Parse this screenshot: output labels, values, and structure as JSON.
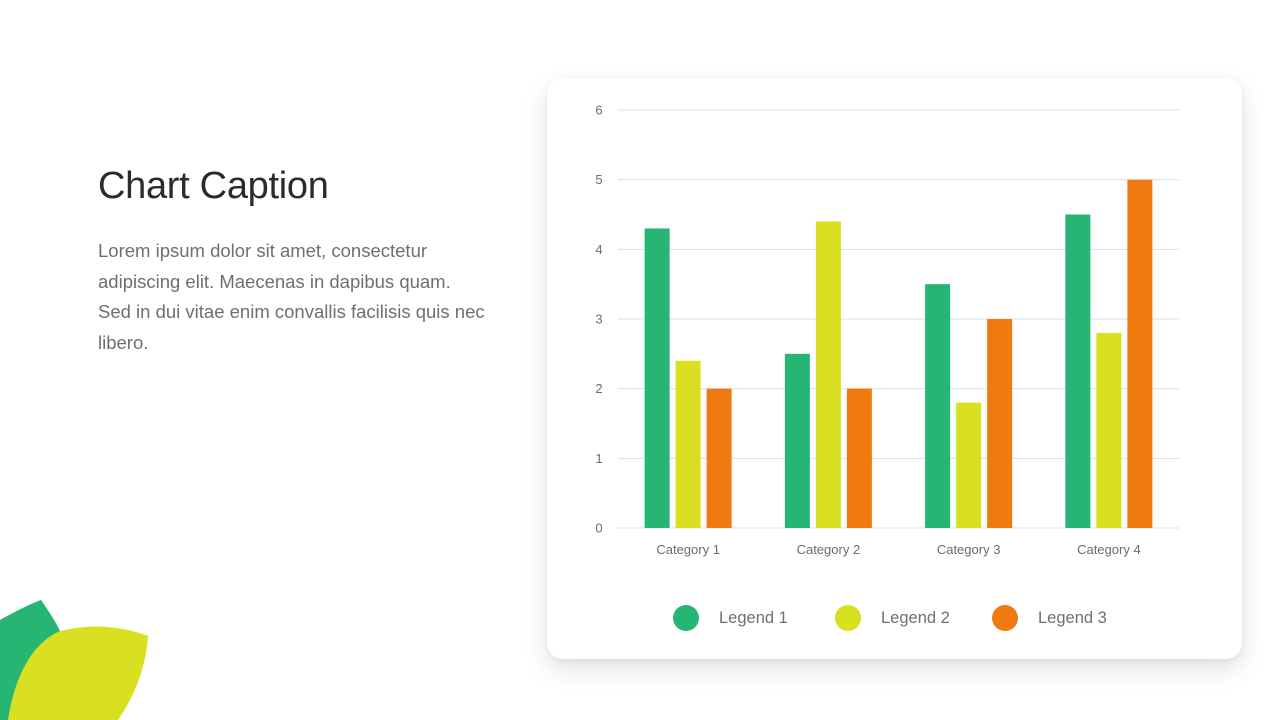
{
  "caption": {
    "title": "Chart Caption",
    "body": "Lorem ipsum dolor sit amet, consectetur adipiscing elit. Maecenas in dapibus quam. Sed in dui vitae enim convallis facilisis quis nec libero."
  },
  "colors": {
    "green": "#27b573",
    "yellow": "#d9e021",
    "orange": "#f07a10",
    "grid": "#dcdfe6",
    "tick_text": "#6b6b6b"
  },
  "chart_data": {
    "type": "bar",
    "categories": [
      "Category 1",
      "Category 2",
      "Category 3",
      "Category 4"
    ],
    "series": [
      {
        "name": "Legend 1",
        "color": "#27b573",
        "values": [
          4.3,
          2.5,
          3.5,
          4.5
        ]
      },
      {
        "name": "Legend 2",
        "color": "#d9e021",
        "values": [
          2.4,
          4.4,
          1.8,
          2.8
        ]
      },
      {
        "name": "Legend 3",
        "color": "#f07a10",
        "values": [
          2,
          2,
          3,
          5
        ]
      }
    ],
    "ylim": [
      0,
      6
    ],
    "yticks": [
      0,
      1,
      2,
      3,
      4,
      5,
      6
    ],
    "grid": true,
    "legend_position": "bottom"
  }
}
